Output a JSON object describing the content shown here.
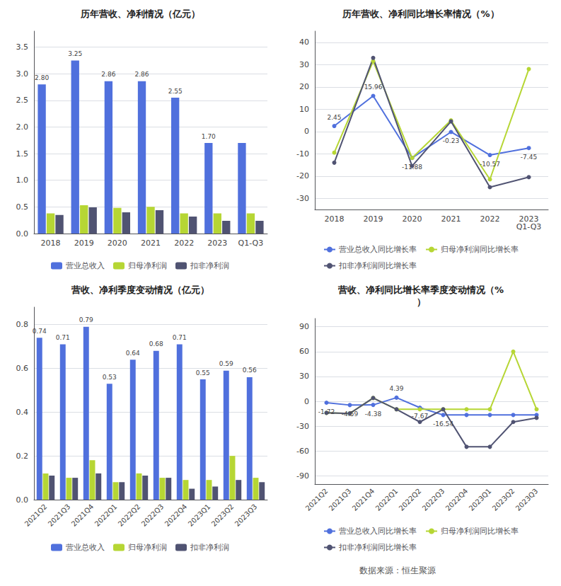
{
  "chart_data": [
    {
      "type": "bar",
      "title": "历年营收、净利情况（亿元）",
      "categories": [
        "2018",
        "2019",
        "2020",
        "2021",
        "2022",
        "2023",
        "Q1-Q3"
      ],
      "series": [
        {
          "name": "营业总收入",
          "values": [
            2.8,
            3.25,
            2.86,
            2.86,
            2.55,
            1.7,
            1.7
          ],
          "data_labels": true,
          "value_labels": [
            "2.80",
            "3.25",
            "2.86",
            "2.86",
            "2.55",
            "1.70",
            null
          ]
        },
        {
          "name": "归母净利润",
          "values": [
            0.38,
            0.53,
            0.48,
            0.5,
            0.38,
            0.38,
            0.38
          ]
        },
        {
          "name": "扣非净利润",
          "values": [
            0.35,
            0.49,
            0.4,
            0.44,
            0.32,
            0.24,
            0.24
          ]
        }
      ],
      "ylim": [
        0,
        3.8
      ],
      "yticks": [
        {
          "value": 0,
          "label": "0.0"
        },
        0.5,
        {
          "value": 1.0,
          "label": "1.0"
        },
        1.5,
        {
          "value": 2.0,
          "label": "2.0"
        },
        2.5,
        {
          "value": 3.0,
          "label": "3.0"
        },
        3.5
      ],
      "grid": true,
      "legend": "bottom"
    },
    {
      "type": "line",
      "title": "历年营收、净利同比增长率情况（%）",
      "categories": [
        "2018",
        "2019",
        "2020",
        "2021",
        "2022",
        "2023\nQ1-Q3"
      ],
      "series": [
        {
          "name": "营业总收入同比增长率",
          "values": [
            2.45,
            15.96,
            -11.88,
            -0.23,
            -10.57,
            -7.45
          ],
          "data_labels": true,
          "marker": "circle"
        },
        {
          "name": "归母净利润同比增长率",
          "values": [
            -9.5,
            31.5,
            -11.88,
            5.0,
            -21.5,
            28.0
          ],
          "marker": "circle"
        },
        {
          "name": "扣非净利润同比增长率",
          "values": [
            -14.0,
            33.0,
            -15.5,
            4.5,
            -25.0,
            -20.5
          ],
          "marker": "circle"
        }
      ],
      "ylim": [
        -35,
        45
      ],
      "yticks": [
        -30,
        -20,
        -10,
        0,
        10,
        20,
        30,
        40
      ],
      "grid": true,
      "legend": "bottom"
    },
    {
      "type": "bar",
      "title": "营收、净利季度变动情况（亿元）",
      "categories": [
        "2021Q2",
        "2021Q3",
        "2021Q4",
        "2022Q1",
        "2022Q2",
        "2022Q3",
        "2022Q4",
        "2023Q1",
        "2023Q2",
        "2023Q3"
      ],
      "series": [
        {
          "name": "营业总收入",
          "values": [
            0.74,
            0.71,
            0.79,
            0.53,
            0.64,
            0.68,
            0.71,
            0.55,
            0.59,
            0.56
          ],
          "data_labels": true
        },
        {
          "name": "归母净利润",
          "values": [
            0.12,
            0.1,
            0.18,
            0.08,
            0.12,
            0.1,
            0.09,
            0.09,
            0.2,
            0.1
          ]
        },
        {
          "name": "扣非净利润",
          "values": [
            0.11,
            0.1,
            0.12,
            0.08,
            0.11,
            0.1,
            0.05,
            0.06,
            0.09,
            0.08
          ]
        }
      ],
      "ylim": [
        0,
        0.88
      ],
      "yticks": [
        {
          "value": 0,
          "label": "0.0"
        },
        0.2,
        0.4,
        0.6,
        0.8
      ],
      "grid": true,
      "legend": "bottom"
    },
    {
      "type": "line",
      "title": "营收、净利同比增长率季度变动情况（%\n）",
      "categories": [
        "2021Q2",
        "2021Q3",
        "2021Q4",
        "2022Q1",
        "2022Q2",
        "2022Q3",
        "2022Q4",
        "2023Q1",
        "2023Q2",
        "2023Q3"
      ],
      "series": [
        {
          "name": "营业总收入同比增长率",
          "values": [
            -1.72,
            -4.59,
            -4.38,
            4.39,
            -7.67,
            -16.54,
            -16.54,
            -16.54,
            -16.54,
            -16.54
          ],
          "data_labels": true,
          "value_labels": [
            "-1.72",
            "-4.59",
            "-4.38",
            "4.39",
            "-7.67",
            "-16.54",
            null,
            null,
            null,
            null
          ],
          "marker": "circle"
        },
        {
          "name": "归母净利润同比增长率",
          "values": [
            -13.99,
            -14.66,
            4.02,
            -9.65,
            -9.65,
            -9.65,
            -9.65,
            -9.65,
            60.0,
            -9.65
          ],
          "marker": "circle"
        },
        {
          "name": "扣非净利润同比增长率",
          "values": [
            -13.99,
            -14.66,
            4.02,
            -9.65,
            -25.0,
            -9.65,
            -55.0,
            -55.0,
            -25.0,
            -20.0
          ],
          "marker": "circle"
        }
      ],
      "ylim": [
        -100,
        100
      ],
      "yticks": [
        -90,
        -60,
        -30,
        0,
        30,
        60,
        90
      ],
      "grid": true,
      "legend": "bottom"
    }
  ],
  "footer": "数据来源：恒生聚源"
}
